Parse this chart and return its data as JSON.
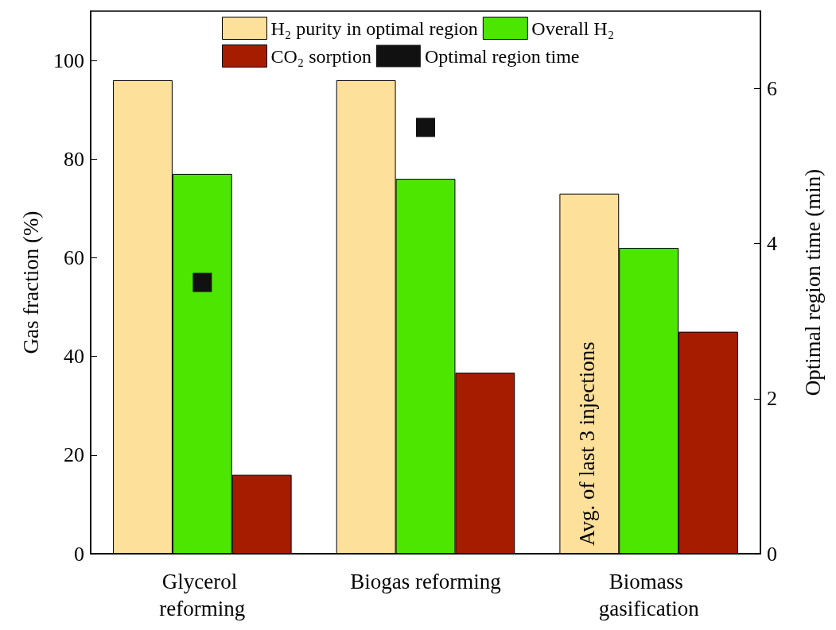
{
  "chart_data": {
    "type": "bar",
    "categories": [
      "Glycerol reforming",
      "Biogas reforming",
      "Biomass gasification"
    ],
    "ylabel": "Gas fraction (%)",
    "y2label": "Optimal region time (min)",
    "ylim": [
      0,
      110
    ],
    "yticks": [
      0,
      20,
      40,
      60,
      80,
      100
    ],
    "y2lim": [
      0,
      7
    ],
    "y2ticks": [
      0,
      2,
      4,
      6
    ],
    "series": [
      {
        "name": "H₂ purity in optimal region",
        "color": "#fde09a",
        "values": [
          96,
          96,
          73
        ]
      },
      {
        "name": "Overall H₂",
        "color": "#4ce600",
        "values": [
          77,
          76,
          62
        ]
      },
      {
        "name": "CO₂ sorption",
        "color": "#a61c00",
        "values": [
          16,
          36.7,
          45
        ]
      },
      {
        "name": "Optimal region time",
        "type": "scatter",
        "axis": "y2",
        "marker": "square",
        "color": "#111111",
        "x": [
          "Glycerol reforming",
          "Biogas reforming"
        ],
        "values": [
          3.5,
          5.5
        ]
      }
    ],
    "annotations": [
      "Avg. of last 3 injections"
    ],
    "legend": "top",
    "grid": false
  }
}
